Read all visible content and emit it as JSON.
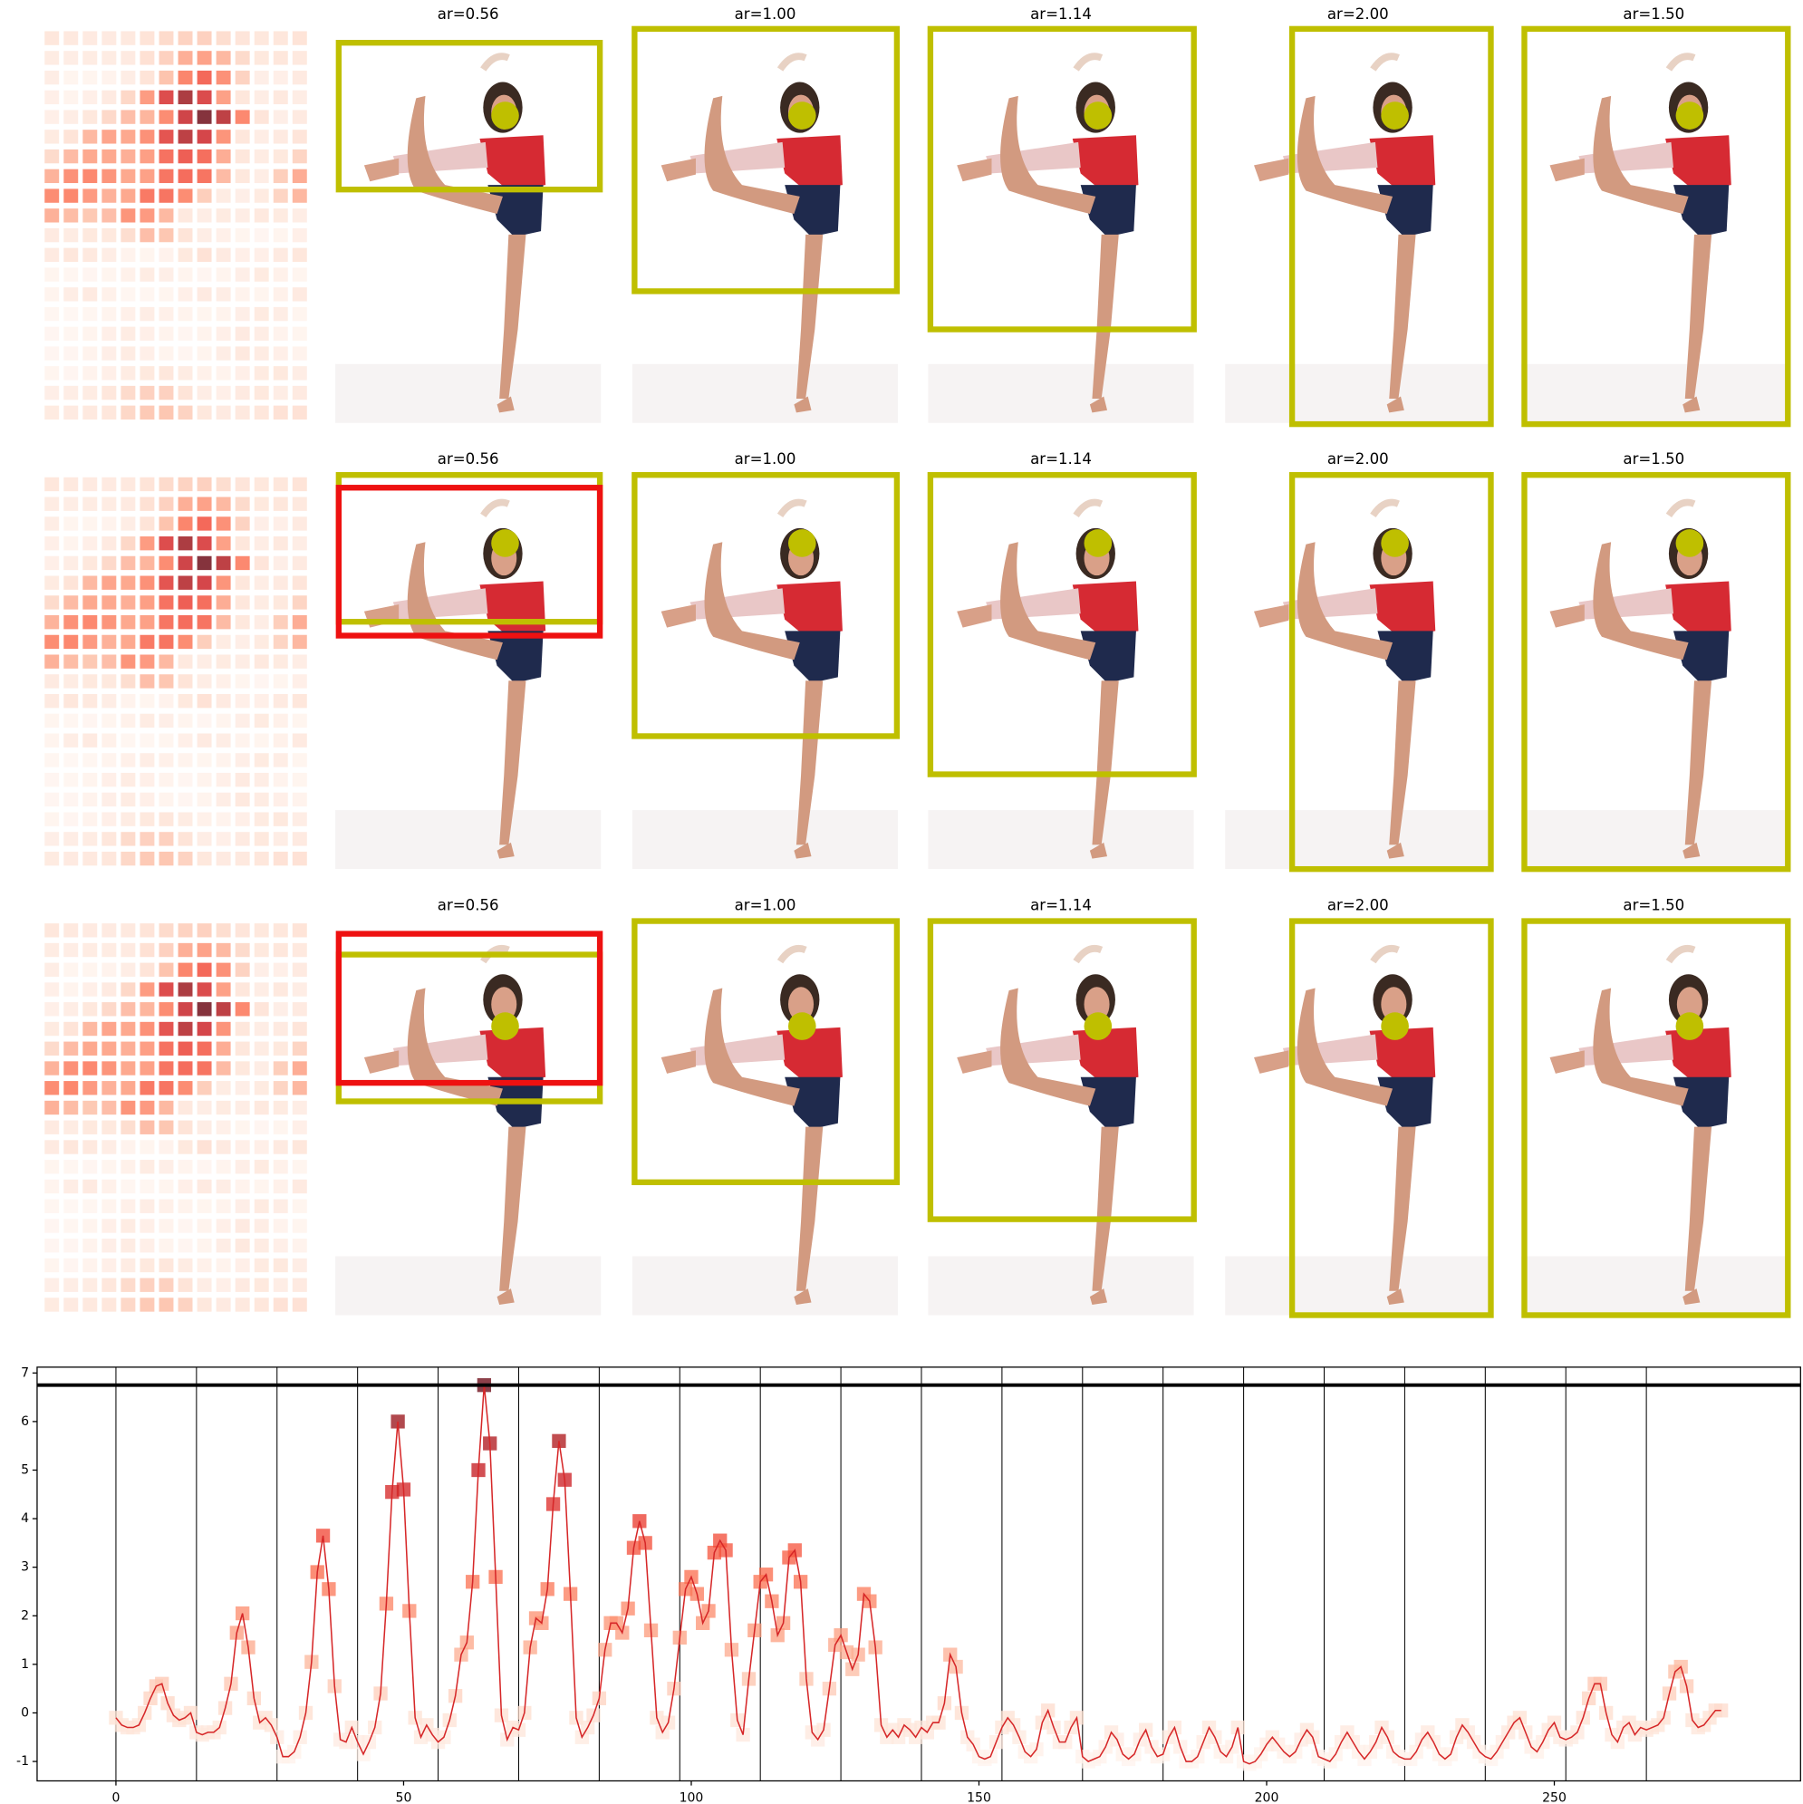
{
  "panel_titles": [
    [
      "ar=0.56",
      "ar=1.00",
      "ar=1.14",
      "ar=2.00",
      "ar=1.50"
    ],
    [
      "ar=0.56",
      "ar=1.00",
      "ar=1.14",
      "ar=2.00",
      "ar=1.50"
    ],
    [
      "ar=0.56",
      "ar=1.00",
      "ar=1.14",
      "ar=2.00",
      "ar=1.50"
    ]
  ],
  "chart_data": {
    "type": "line",
    "x": [
      0,
      1,
      2,
      3,
      4,
      5,
      6,
      7,
      8,
      9,
      10,
      11,
      12,
      13,
      14,
      15,
      16,
      17,
      18,
      19,
      20,
      21,
      22,
      23,
      24,
      25,
      26,
      27,
      28,
      29,
      30,
      31,
      32,
      33,
      34,
      35,
      36,
      37,
      38,
      39,
      40,
      41,
      42,
      43,
      44,
      45,
      46,
      47,
      48,
      49,
      50,
      51,
      52,
      53,
      54,
      55,
      56,
      57,
      58,
      59,
      60,
      61,
      62,
      63,
      64,
      65,
      66,
      67,
      68,
      69,
      70,
      71,
      72,
      73,
      74,
      75,
      76,
      77,
      78,
      79,
      80,
      81,
      82,
      83,
      84,
      85,
      86,
      87,
      88,
      89,
      90,
      91,
      92,
      93,
      94,
      95,
      96,
      97,
      98,
      99,
      100,
      101,
      102,
      103,
      104,
      105,
      106,
      107,
      108,
      109,
      110,
      111,
      112,
      113,
      114,
      115,
      116,
      117,
      118,
      119,
      120,
      121,
      122,
      123,
      124,
      125,
      126,
      127,
      128,
      129,
      130,
      131,
      132,
      133,
      134,
      135,
      136,
      137,
      138,
      139,
      140,
      141,
      142,
      143,
      144,
      145,
      146,
      147,
      148,
      149,
      150,
      151,
      152,
      153,
      154,
      155,
      156,
      157,
      158,
      159,
      160,
      161,
      162,
      163,
      164,
      165,
      166,
      167,
      168,
      169,
      170,
      171,
      172,
      173,
      174,
      175,
      176,
      177,
      178,
      179,
      180,
      181,
      182,
      183,
      184,
      185,
      186,
      187,
      188,
      189,
      190,
      191,
      192,
      193,
      194,
      195,
      196,
      197,
      198,
      199,
      200,
      201,
      202,
      203,
      204,
      205,
      206,
      207,
      208,
      209,
      210,
      211,
      212,
      213,
      214,
      215,
      216,
      217,
      218,
      219,
      220,
      221,
      222,
      223,
      224,
      225,
      226,
      227,
      228,
      229,
      230,
      231,
      232,
      233,
      234,
      235,
      236,
      237,
      238,
      239,
      240,
      241,
      242,
      243,
      244,
      245,
      246,
      247,
      248,
      249,
      250,
      251,
      252,
      253,
      254,
      255,
      256,
      257,
      258,
      259,
      260,
      261,
      262,
      263,
      264,
      265,
      266,
      267,
      268,
      269,
      270,
      271,
      272,
      273,
      274,
      275,
      276,
      277,
      278,
      279
    ],
    "series": [
      {
        "color": "#d62728",
        "values": [
          -0.1,
          -0.25,
          -0.3,
          -0.3,
          -0.25,
          0,
          0.3,
          0.55,
          0.6,
          0.2,
          -0.05,
          -0.15,
          -0.1,
          0,
          -0.4,
          -0.45,
          -0.4,
          -0.4,
          -0.3,
          0.1,
          0.6,
          1.65,
          2.05,
          1.35,
          0.3,
          -0.2,
          -0.1,
          -0.25,
          -0.5,
          -0.9,
          -0.9,
          -0.8,
          -0.5,
          0,
          1.05,
          2.9,
          3.65,
          2.55,
          0.55,
          -0.55,
          -0.6,
          -0.3,
          -0.6,
          -0.85,
          -0.6,
          -0.3,
          0.4,
          2.25,
          4.55,
          6.0,
          4.6,
          2.1,
          -0.1,
          -0.5,
          -0.25,
          -0.45,
          -0.6,
          -0.5,
          -0.15,
          0.35,
          1.2,
          1.45,
          2.7,
          5.0,
          6.75,
          5.55,
          2.8,
          -0.05,
          -0.55,
          -0.3,
          -0.35,
          0,
          1.35,
          1.95,
          1.85,
          2.55,
          4.3,
          5.6,
          4.8,
          2.45,
          -0.1,
          -0.5,
          -0.3,
          -0.05,
          0.3,
          1.3,
          1.85,
          1.85,
          1.65,
          2.15,
          3.4,
          3.95,
          3.5,
          1.7,
          -0.1,
          -0.4,
          -0.2,
          0.5,
          1.55,
          2.55,
          2.8,
          2.45,
          1.85,
          2.1,
          3.3,
          3.55,
          3.35,
          1.3,
          -0.15,
          -0.45,
          0.7,
          1.7,
          2.7,
          2.85,
          2.3,
          1.6,
          1.85,
          3.2,
          3.35,
          2.7,
          0.7,
          -0.4,
          -0.55,
          -0.35,
          0.5,
          1.4,
          1.6,
          1.25,
          0.9,
          1.2,
          2.45,
          2.3,
          1.35,
          -0.25,
          -0.5,
          -0.35,
          -0.5,
          -0.25,
          -0.35,
          -0.5,
          -0.3,
          -0.4,
          -0.2,
          -0.2,
          0.2,
          1.2,
          0.95,
          0,
          -0.5,
          -0.65,
          -0.9,
          -0.95,
          -0.9,
          -0.6,
          -0.3,
          -0.1,
          -0.25,
          -0.5,
          -0.8,
          -0.9,
          -0.75,
          -0.2,
          0.05,
          -0.3,
          -0.6,
          -0.6,
          -0.3,
          -0.1,
          -0.9,
          -1.0,
          -0.95,
          -0.9,
          -0.7,
          -0.4,
          -0.55,
          -0.85,
          -0.95,
          -0.85,
          -0.55,
          -0.35,
          -0.7,
          -0.9,
          -0.85,
          -0.5,
          -0.3,
          -0.7,
          -1.0,
          -1.0,
          -0.9,
          -0.6,
          -0.3,
          -0.5,
          -0.8,
          -0.9,
          -0.7,
          -0.3,
          -1.0,
          -1.05,
          -1.0,
          -0.85,
          -0.65,
          -0.5,
          -0.65,
          -0.8,
          -0.9,
          -0.8,
          -0.55,
          -0.35,
          -0.5,
          -0.9,
          -0.95,
          -1.0,
          -0.85,
          -0.6,
          -0.4,
          -0.6,
          -0.8,
          -0.95,
          -0.8,
          -0.6,
          -0.3,
          -0.5,
          -0.8,
          -0.9,
          -0.95,
          -0.95,
          -0.8,
          -0.55,
          -0.4,
          -0.6,
          -0.85,
          -0.95,
          -0.85,
          -0.5,
          -0.25,
          -0.4,
          -0.6,
          -0.8,
          -0.9,
          -0.95,
          -0.8,
          -0.6,
          -0.4,
          -0.2,
          -0.1,
          -0.4,
          -0.7,
          -0.8,
          -0.6,
          -0.35,
          -0.2,
          -0.5,
          -0.55,
          -0.5,
          -0.4,
          -0.1,
          0.3,
          0.6,
          0.6,
          0,
          -0.45,
          -0.6,
          -0.3,
          -0.2,
          -0.45,
          -0.3,
          -0.35,
          -0.3,
          -0.25,
          -0.1,
          0.4,
          0.85,
          0.95,
          0.55,
          -0.15,
          -0.3,
          -0.25,
          -0.1,
          0.05,
          0.05
        ]
      }
    ],
    "cmap": [
      "#fff5f0",
      "#fee0d2",
      "#fcbba1",
      "#fc9272",
      "#fb6a4a",
      "#ef3b2c",
      "#cb181d",
      "#a50f15",
      "#67000d"
    ],
    "hline": 6.75,
    "vlines": [
      0,
      14,
      28,
      42,
      56,
      70,
      84,
      98,
      112,
      126,
      140,
      154,
      168,
      182,
      196,
      210,
      224,
      238,
      252,
      266
    ],
    "xlim": [
      -13.7,
      292.8
    ],
    "ylim": [
      -1.4,
      7.12
    ],
    "xticks": [
      0,
      50,
      100,
      150,
      200,
      250
    ],
    "yticks": [
      -1,
      0,
      1,
      2,
      3,
      4,
      5,
      6,
      7
    ]
  }
}
